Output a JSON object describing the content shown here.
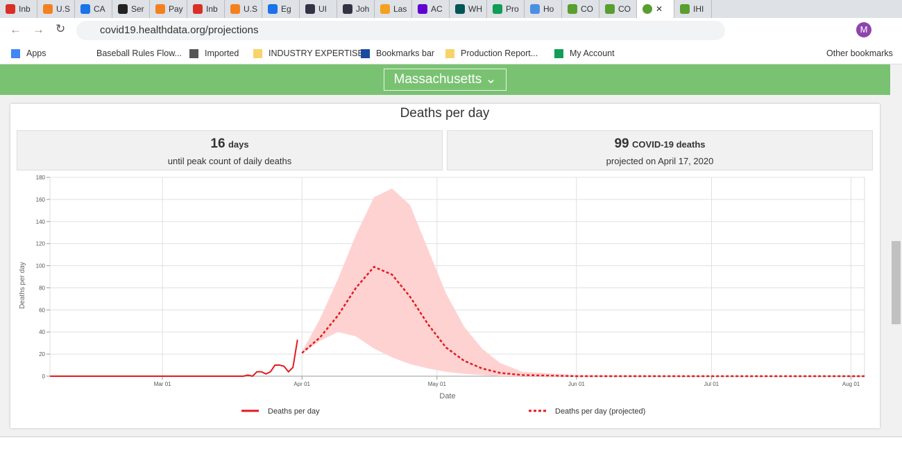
{
  "browser": {
    "tabs": [
      "Inb",
      "U.S",
      "CA",
      "Ser",
      "Pay",
      "Inb",
      "U.S",
      "Eg",
      "UI",
      "Joh",
      "Las",
      "AC",
      "WH",
      "Pro",
      "Ho",
      "CO",
      "CO",
      "IHI"
    ],
    "url": "covid19.healthdata.org/projections",
    "profile": "M",
    "bookmarks": [
      "Apps",
      "Baseball Rules Flow...",
      "Imported",
      "INDUSTRY EXPERTISE",
      "Bookmarks bar",
      "Production Report...",
      "My Account"
    ],
    "other_bookmarks": "Other bookmarks"
  },
  "location": "Massachusetts",
  "stats": [
    {
      "number": "16",
      "unit": "days",
      "caption": "until peak count of daily deaths"
    },
    {
      "number": "99",
      "unit": "COVID-19 deaths",
      "caption": "projected on April 17, 2020"
    }
  ],
  "chart_data": {
    "type": "line",
    "title": "Deaths per day",
    "xlabel": "Date",
    "ylabel": "Deaths per day",
    "xlim": [
      "02-05",
      "08-04"
    ],
    "xticks": [
      {
        "value": "03-01",
        "label": "Mar 01"
      },
      {
        "value": "04-01",
        "label": "Apr 01"
      },
      {
        "value": "05-01",
        "label": "May 01"
      },
      {
        "value": "06-01",
        "label": "Jun 01"
      },
      {
        "value": "07-01",
        "label": "Jul 01"
      },
      {
        "value": "08-01",
        "label": "Aug 01"
      }
    ],
    "ylim": [
      0,
      180
    ],
    "yticks": [
      0,
      20,
      40,
      60,
      80,
      100,
      120,
      140,
      160,
      180
    ],
    "grid": true,
    "series": [
      {
        "name": "Deaths per day",
        "color": "#e31a1c",
        "style": "solid",
        "x": [
          "02-05",
          "03-19",
          "03-20",
          "03-21",
          "03-22",
          "03-23",
          "03-24",
          "03-25",
          "03-26",
          "03-27",
          "03-28",
          "03-29",
          "03-30",
          "03-31"
        ],
        "values": [
          0,
          0,
          1,
          0,
          4,
          4,
          2,
          4,
          10,
          10,
          9,
          4,
          8,
          33
        ]
      },
      {
        "name": "Deaths per day (projected)",
        "color": "#e31a1c",
        "style": "dashed",
        "band_color": "#ffd2d2",
        "x": [
          "04-01",
          "04-05",
          "04-09",
          "04-13",
          "04-17",
          "04-21",
          "04-25",
          "04-29",
          "05-03",
          "05-07",
          "05-11",
          "05-15",
          "05-20",
          "06-01",
          "08-04"
        ],
        "values": [
          21,
          35,
          55,
          80,
          99,
          92,
          72,
          47,
          26,
          14,
          7,
          3,
          1,
          0,
          0
        ],
        "upper": [
          22,
          52,
          88,
          128,
          162,
          170,
          155,
          115,
          75,
          45,
          25,
          12,
          4,
          1,
          0
        ],
        "lower": [
          20,
          32,
          40,
          36,
          25,
          17,
          11,
          7,
          4,
          2,
          1,
          0,
          0,
          0,
          0
        ]
      }
    ]
  }
}
